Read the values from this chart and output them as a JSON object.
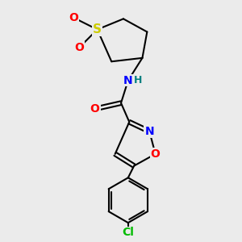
{
  "bg_color": "#ebebeb",
  "bond_color": "#000000",
  "bond_width": 1.5,
  "S_color": "#cccc00",
  "O_color": "#ff0000",
  "N_color": "#0000ff",
  "Cl_color": "#00bb00",
  "H_color": "#008080",
  "figsize": [
    3.0,
    3.0
  ],
  "dpi": 100,
  "xlim": [
    0,
    10
  ],
  "ylim": [
    0,
    10
  ]
}
